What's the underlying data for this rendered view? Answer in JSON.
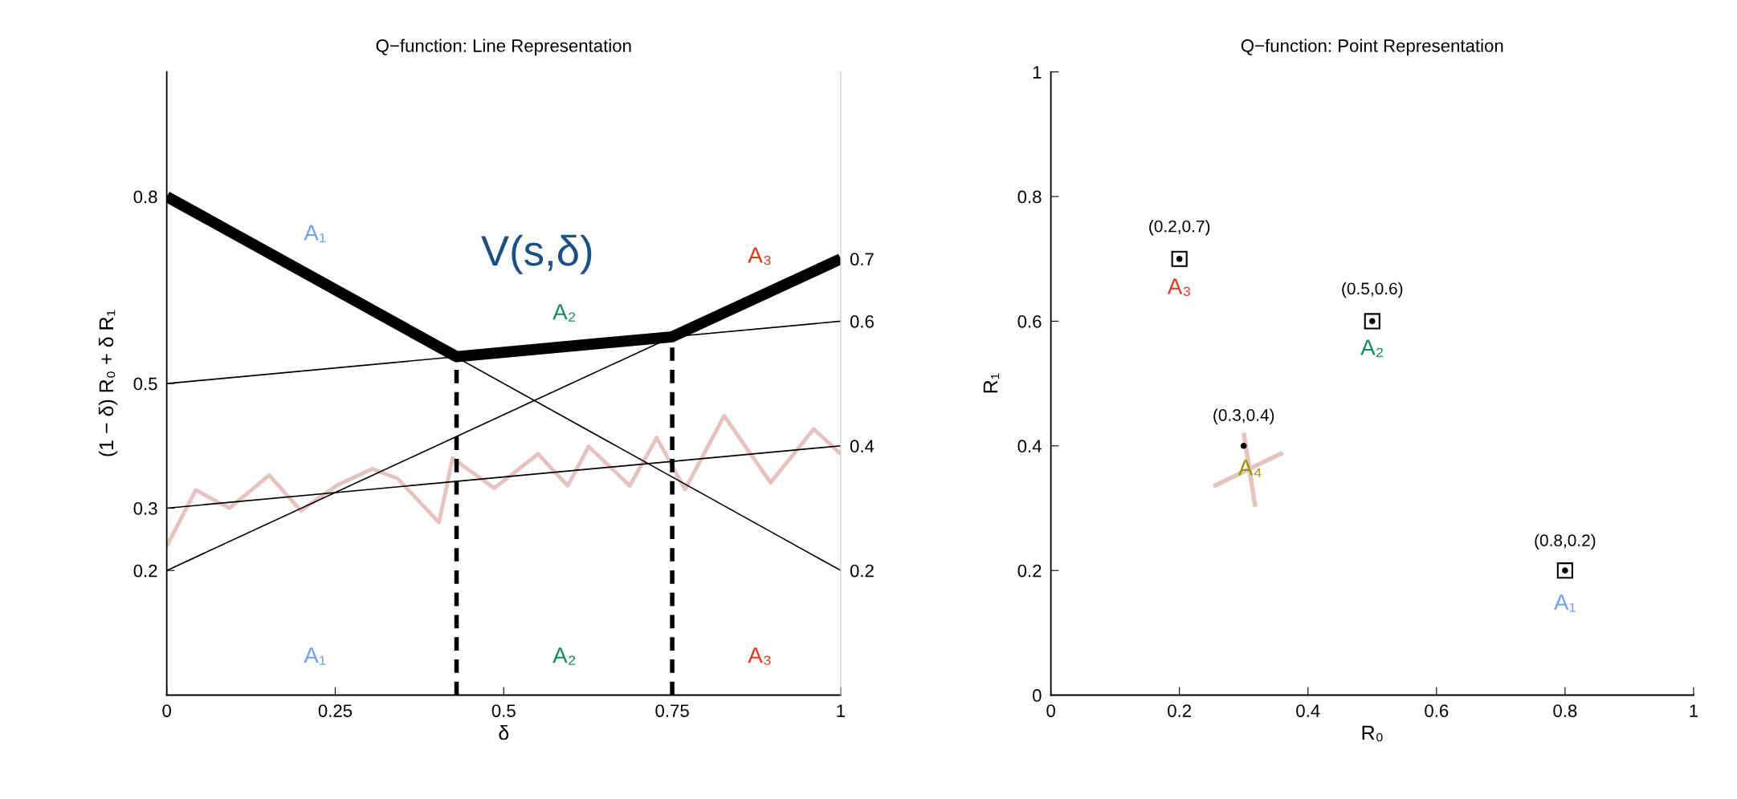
{
  "chart_data": [
    {
      "type": "line",
      "title": "Q−function: Line Representation",
      "xlabel": "δ",
      "ylabel": "(1 − δ) R₀ + δ R₁",
      "xlim": [
        0,
        1
      ],
      "xticks": [
        0,
        0.25,
        0.5,
        0.75,
        1
      ],
      "ylim": [
        0,
        1
      ],
      "yticks": [
        0.2,
        0.3,
        0.5,
        0.8
      ],
      "y2lim": [
        0,
        1
      ],
      "y2ticks": [
        0.2,
        0.4,
        0.6,
        0.7
      ],
      "marker": "none",
      "series": [
        {
          "x": [
            0,
            0.043,
            0.093,
            0.152,
            0.199,
            0.253,
            0.305,
            0.342,
            0.404,
            0.424,
            0.486,
            0.551,
            0.595,
            0.626,
            0.687,
            0.727,
            0.769,
            0.827,
            0.896,
            0.96,
            1
          ],
          "values": [
            0.239,
            0.329,
            0.3,
            0.353,
            0.296,
            0.337,
            0.363,
            0.348,
            0.277,
            0.38,
            0.332,
            0.387,
            0.336,
            0.399,
            0.336,
            0.413,
            0.33,
            0.448,
            0.341,
            0.427,
            0.387
          ],
          "color": "#e6c3bf",
          "line_style": "solid"
        },
        {
          "x": [
            0,
            1
          ],
          "values": [
            0.8,
            0.2
          ],
          "color": "#000000",
          "line_style": "solid"
        },
        {
          "x": [
            0,
            1
          ],
          "values": [
            0.5,
            0.6
          ],
          "color": "#000000",
          "line_style": "solid"
        },
        {
          "x": [
            0,
            1
          ],
          "values": [
            0.2,
            0.7
          ],
          "color": "#000000",
          "line_style": "solid"
        },
        {
          "x": [
            0,
            1
          ],
          "values": [
            0.3,
            0.4
          ],
          "color": "#000000",
          "line_style": "solid"
        },
        {
          "x": [
            0.43,
            0.43
          ],
          "values": [
            0,
            0.543
          ],
          "color": "#000000",
          "line_style": "dashed"
        },
        {
          "x": [
            0.75,
            0.75
          ],
          "values": [
            0,
            0.575
          ],
          "color": "#000000",
          "line_style": "dashed"
        },
        {
          "x": [
            0,
            0.43,
            0.75,
            1
          ],
          "values": [
            0.8,
            0.543,
            0.575,
            0.7
          ],
          "color": "#000000",
          "line_style": "solid"
        }
      ],
      "annotations": [
        "A₁",
        "A₂",
        "A₃",
        "V(s,δ)",
        "A₁",
        "A₂",
        "A₃"
      ]
    },
    {
      "type": "scatter",
      "title": "Q−function: Point Representation",
      "xlabel": "R₀",
      "ylabel": "R₁",
      "xlim": [
        0,
        1
      ],
      "xticks": [
        0,
        0.2,
        0.4,
        0.6,
        0.8,
        1
      ],
      "ylim": [
        0,
        1
      ],
      "yticks": [
        0,
        0.2,
        0.4,
        0.6,
        0.8,
        1
      ],
      "series": [
        {
          "type": "line",
          "x": [
            0.3,
            0.318
          ],
          "values": [
            0.421,
            0.302
          ],
          "color": "#e6c3bf",
          "marker": "none"
        },
        {
          "type": "line",
          "x": [
            0.253,
            0.361
          ],
          "values": [
            0.335,
            0.389
          ],
          "color": "#e6c3bf",
          "marker": "none"
        },
        {
          "type": "scatter",
          "x": [
            0.2,
            0.5,
            0.8
          ],
          "values": [
            0.7,
            0.6,
            0.2
          ],
          "color": "#000000",
          "marker": "square"
        },
        {
          "type": "scatter",
          "x": [
            0.2,
            0.5,
            0.3,
            0.8
          ],
          "values": [
            0.7,
            0.6,
            0.4,
            0.2
          ],
          "color": "#000000"
        }
      ],
      "annotations": [
        "(0.2,0.7)",
        "A₃",
        "(0.5,0.6)",
        "A₂",
        "(0.3,0.4)",
        "A₄",
        "(0.8,0.2)",
        "A₁"
      ]
    }
  ]
}
